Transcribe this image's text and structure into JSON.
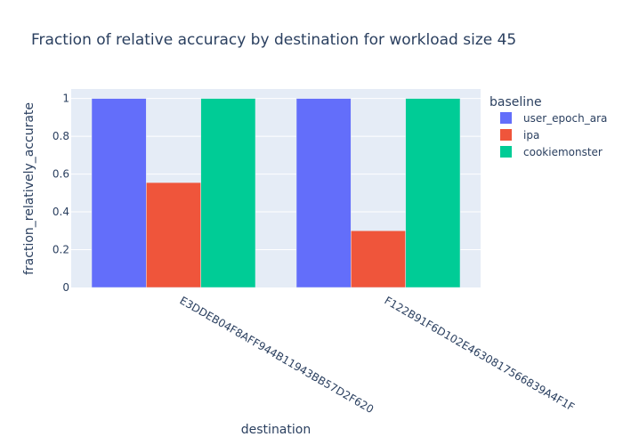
{
  "chart_data": {
    "type": "bar",
    "title": "Fraction of relative accuracy by destination for workload size 45",
    "xlabel": "destination",
    "ylabel": "fraction_relatively_accurate",
    "categories": [
      "E3DDEB04F8AFF944B11943BB57D2F620",
      "F122B91F6D102E4630817566839A4F1F"
    ],
    "ylim": [
      0,
      1.05
    ],
    "yticks": [
      0,
      0.2,
      0.4,
      0.6,
      0.8,
      1
    ],
    "ytick_labels": [
      "0",
      "0.2",
      "0.4",
      "0.6",
      "0.8",
      "1"
    ],
    "grid": true,
    "legend": {
      "title": "baseline",
      "position": "right"
    },
    "series": [
      {
        "name": "user_epoch_ara",
        "color": "#636efa",
        "values": [
          1,
          1
        ]
      },
      {
        "name": "ipa",
        "color": "#ef553b",
        "values": [
          0.555,
          0.3
        ]
      },
      {
        "name": "cookiemonster",
        "color": "#00cc96",
        "values": [
          1,
          1
        ]
      }
    ],
    "plot_bgcolor": "#e5ecf6"
  }
}
